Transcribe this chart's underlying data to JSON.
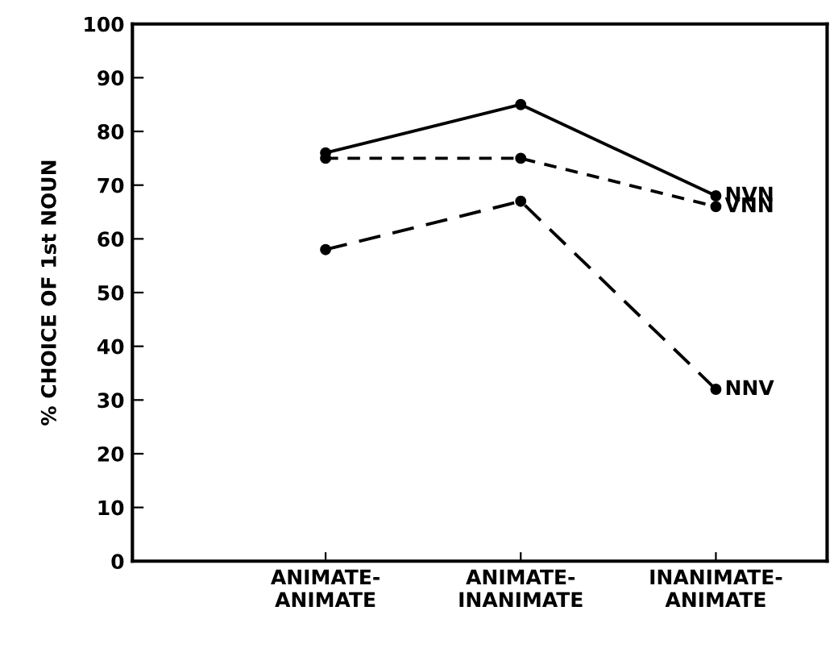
{
  "chart_data": {
    "type": "line",
    "ylabel": "% CHOICE OF 1st NOUN",
    "categories": [
      "ANIMATE-\nANIMATE",
      "ANIMATE-\nINANIMATE",
      "INANIMATE-\nANIMATE"
    ],
    "series": [
      {
        "name": "NVN",
        "color": "#000000",
        "line_style": "solid",
        "values": [
          76,
          85,
          68
        ]
      },
      {
        "name": "VNN",
        "color": "#000000",
        "line_style": "dashed",
        "values": [
          75,
          75,
          66
        ]
      },
      {
        "name": "NNV",
        "color": "#000000",
        "line_style": "dashed",
        "values": [
          58,
          67,
          32
        ]
      }
    ],
    "ylim": [
      0,
      100
    ],
    "yticks": [
      0,
      10,
      20,
      30,
      40,
      50,
      60,
      70,
      80,
      90,
      100
    ],
    "marker": "circle",
    "grid": false,
    "legend": false
  }
}
